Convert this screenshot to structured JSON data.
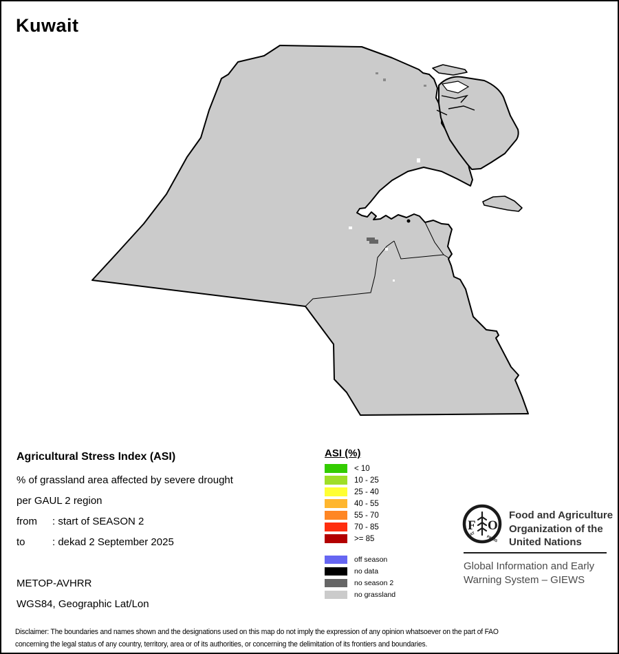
{
  "title": "Kuwait",
  "colors": {
    "map_fill": "#CBCBCB",
    "map_stroke": "#000000",
    "no_season2_patch": "#666666",
    "speck_gray": "#8a8a8a",
    "speck_white": "#ffffff"
  },
  "info_block": {
    "heading": "Agricultural Stress Index (ASI)",
    "line1": "% of grassland area affected by severe drought",
    "line2": "per GAUL 2 region",
    "from_label": "from",
    "from_value": ": start of SEASON 2",
    "to_label": "to",
    "to_value": ": dekad 2 September 2025",
    "sensor": "METOP-AVHRR",
    "projection": "WGS84, Geographic Lat/Lon"
  },
  "legend": {
    "heading": "ASI (%)",
    "asi_classes": [
      {
        "label": "< 10",
        "color": "#33CC00"
      },
      {
        "label": "10 - 25",
        "color": "#9FDE28"
      },
      {
        "label": "25 - 40",
        "color": "#FFFF33"
      },
      {
        "label": "40 - 55",
        "color": "#FFB62E"
      },
      {
        "label": "55 - 70",
        "color": "#FF8624"
      },
      {
        "label": "70 - 85",
        "color": "#FF2E0F"
      },
      {
        "label": ">= 85",
        "color": "#B30000"
      }
    ],
    "other_classes": [
      {
        "label": "off season",
        "color": "#6666F2"
      },
      {
        "label": "no data",
        "color": "#000000"
      },
      {
        "label": "no season 2",
        "color": "#666666"
      },
      {
        "label": "no grassland",
        "color": "#CBCBCB"
      }
    ]
  },
  "fao": {
    "org_lines": [
      "Food and Agriculture",
      "Organization of the",
      "United Nations"
    ],
    "giews_lines": [
      "Global Information and Early",
      "Warning System – GIEWS"
    ],
    "logo": {
      "left_letter": "F",
      "right_letter": "O",
      "motto_left": "FIAT",
      "motto_right": "PANIS"
    }
  },
  "disclaimer": {
    "line1": "Disclaimer: The boundaries and names shown and the designations used on this map do not imply the expression of any opinion whatsoever on the part of FAO",
    "line2": "concerning the legal status of any country, territory, area or of its authorities, or concerning the delimitation of its frontiers and boundaries."
  }
}
